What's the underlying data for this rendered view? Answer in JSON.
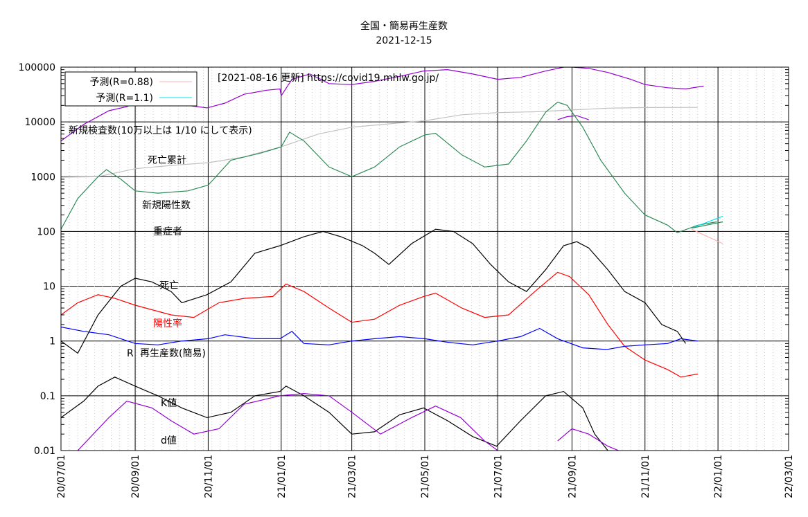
{
  "chart_data": {
    "type": "line",
    "title": "全国・簡易再生産数",
    "subtitle": "2021-12-15",
    "yscale": "log",
    "ylim": [
      0.01,
      100000
    ],
    "y_ticks": [
      "100000",
      "10000",
      "1000",
      "100",
      "10",
      "1",
      "0.1",
      "0.01"
    ],
    "xlim": [
      "2020-07-01",
      "2022-03-01"
    ],
    "x_ticks": [
      "20/07/01",
      "20/09/01",
      "20/11/01",
      "21/01/01",
      "21/03/01",
      "21/05/01",
      "21/07/01",
      "21/09/01",
      "21/11/01",
      "22/01/01",
      "22/03/01"
    ],
    "grid": "on",
    "legend": {
      "placement": "top-left",
      "entries": [
        {
          "label": "予測(R=0.88)",
          "color": "#ffb0b0"
        },
        {
          "label": "予測(R=1.1)",
          "color": "#00e5ee"
        }
      ]
    },
    "annotations": {
      "source": "[2021-08-16 更新] https://covid19.mhlw.go.jp/",
      "tests_note": "新規検査数(10万以上は 1/10 にして表示)",
      "deaths_cum": "死亡累計",
      "new_positive": "新規陽性数",
      "severe": "重症者",
      "death": "死亡",
      "positivity": "陽性率",
      "r_label": "R",
      "reproduction": "再生産数(簡易)",
      "k_value": "K値",
      "d_value": "d値"
    },
    "series": [
      {
        "key": "tests",
        "color": "#9400d3",
        "points": [
          [
            "2020-07-01",
            4500
          ],
          [
            "2020-07-20",
            9000
          ],
          [
            "2020-08-10",
            16000
          ],
          [
            "2020-08-25",
            19000
          ],
          [
            "2020-09-05",
            24000
          ],
          [
            "2020-09-15",
            22000
          ],
          [
            "2020-10-01",
            20000
          ],
          [
            "2020-10-10",
            32000
          ],
          [
            "2020-10-15",
            20000
          ],
          [
            "2020-10-31",
            18000
          ],
          [
            "2020-11-15",
            22000
          ],
          [
            "2020-12-01",
            32000
          ],
          [
            "2020-12-20",
            38000
          ],
          [
            "2020-12-31",
            40000
          ],
          [
            "2021-01-01",
            30000
          ],
          [
            "2021-01-10",
            60000
          ],
          [
            "2021-01-25",
            75000
          ],
          [
            "2021-02-10",
            50000
          ],
          [
            "2021-03-01",
            48000
          ],
          [
            "2021-03-20",
            55000
          ],
          [
            "2021-04-10",
            68000
          ],
          [
            "2021-04-30",
            85000
          ],
          [
            "2021-05-20",
            90000
          ],
          [
            "2021-06-10",
            75000
          ],
          [
            "2021-07-01",
            60000
          ],
          [
            "2021-07-20",
            65000
          ],
          [
            "2021-08-10",
            85000
          ],
          [
            "2021-08-25",
            100000
          ],
          [
            "2021-09-01",
            100000
          ],
          [
            "2021-09-15",
            95000
          ],
          [
            "2021-10-01",
            80000
          ],
          [
            "2021-10-20",
            60000
          ],
          [
            "2021-11-01",
            48000
          ],
          [
            "2021-11-20",
            42000
          ],
          [
            "2021-12-05",
            40000
          ],
          [
            "2021-12-20",
            45000
          ]
        ]
      },
      {
        "key": "tests_scaled",
        "color": "#9400d3",
        "points": [
          [
            "2021-08-20",
            11000
          ],
          [
            "2021-08-28",
            12500
          ],
          [
            "2021-09-05",
            13000
          ],
          [
            "2021-09-15",
            11000
          ]
        ]
      },
      {
        "key": "deaths_cumulative",
        "color": "#c0c0c0",
        "points": [
          [
            "2020-07-01",
            980
          ],
          [
            "2020-08-01",
            1000
          ],
          [
            "2020-09-01",
            1400
          ],
          [
            "2020-10-01",
            1600
          ],
          [
            "2020-11-01",
            1800
          ],
          [
            "2020-12-01",
            2300
          ],
          [
            "2021-01-01",
            3500
          ],
          [
            "2021-02-01",
            6000
          ],
          [
            "2021-03-01",
            8000
          ],
          [
            "2021-04-01",
            9200
          ],
          [
            "2021-05-01",
            10500
          ],
          [
            "2021-06-01",
            13500
          ],
          [
            "2021-07-01",
            14800
          ],
          [
            "2021-08-01",
            15300
          ],
          [
            "2021-09-01",
            16500
          ],
          [
            "2021-10-01",
            17800
          ],
          [
            "2021-11-01",
            18300
          ],
          [
            "2021-12-15",
            18400
          ]
        ]
      },
      {
        "key": "new_positive",
        "color": "#2e8b57",
        "points": [
          [
            "2020-07-01",
            110
          ],
          [
            "2020-07-15",
            400
          ],
          [
            "2020-08-01",
            1000
          ],
          [
            "2020-08-08",
            1350
          ],
          [
            "2020-08-20",
            900
          ],
          [
            "2020-09-01",
            550
          ],
          [
            "2020-09-20",
            500
          ],
          [
            "2020-10-15",
            550
          ],
          [
            "2020-11-01",
            700
          ],
          [
            "2020-11-20",
            2000
          ],
          [
            "2020-12-15",
            2700
          ],
          [
            "2021-01-01",
            3500
          ],
          [
            "2021-01-08",
            6500
          ],
          [
            "2021-01-20",
            4500
          ],
          [
            "2021-02-10",
            1500
          ],
          [
            "2021-03-01",
            1000
          ],
          [
            "2021-03-20",
            1500
          ],
          [
            "2021-04-10",
            3500
          ],
          [
            "2021-05-01",
            5800
          ],
          [
            "2021-05-10",
            6200
          ],
          [
            "2021-06-01",
            2500
          ],
          [
            "2021-06-20",
            1500
          ],
          [
            "2021-07-10",
            1700
          ],
          [
            "2021-07-25",
            4500
          ],
          [
            "2021-08-10",
            15000
          ],
          [
            "2021-08-20",
            23000
          ],
          [
            "2021-08-28",
            20000
          ],
          [
            "2021-09-10",
            8000
          ],
          [
            "2021-09-25",
            2000
          ],
          [
            "2021-10-15",
            500
          ],
          [
            "2021-11-01",
            200
          ],
          [
            "2021-11-20",
            130
          ],
          [
            "2021-11-28",
            95
          ],
          [
            "2021-12-15",
            130
          ],
          [
            "2021-12-31",
            150
          ]
        ]
      },
      {
        "key": "severe",
        "color": "#000000",
        "points": [
          [
            "2020-07-01",
            1
          ],
          [
            "2020-07-15",
            0.6
          ],
          [
            "2020-08-01",
            3
          ],
          [
            "2020-08-20",
            10
          ],
          [
            "2020-09-01",
            14
          ],
          [
            "2020-09-15",
            12
          ],
          [
            "2020-10-01",
            8
          ],
          [
            "2020-10-10",
            5
          ],
          [
            "2020-10-31",
            7
          ],
          [
            "2020-11-20",
            12
          ],
          [
            "2020-12-10",
            40
          ],
          [
            "2020-12-31",
            55
          ],
          [
            "2021-01-20",
            80
          ],
          [
            "2021-02-05",
            100
          ],
          [
            "2021-02-20",
            80
          ],
          [
            "2021-03-10",
            55
          ],
          [
            "2021-03-20",
            40
          ],
          [
            "2021-04-01",
            25
          ],
          [
            "2021-04-20",
            60
          ],
          [
            "2021-05-10",
            110
          ],
          [
            "2021-05-25",
            100
          ],
          [
            "2021-06-10",
            60
          ],
          [
            "2021-06-25",
            25
          ],
          [
            "2021-07-10",
            12
          ],
          [
            "2021-07-25",
            8
          ],
          [
            "2021-08-10",
            20
          ],
          [
            "2021-08-25",
            55
          ],
          [
            "2021-09-05",
            65
          ],
          [
            "2021-09-15",
            50
          ],
          [
            "2021-10-01",
            20
          ],
          [
            "2021-10-15",
            8
          ],
          [
            "2021-11-01",
            5
          ],
          [
            "2021-11-15",
            2
          ],
          [
            "2021-11-28",
            1.5
          ],
          [
            "2021-12-05",
            0.9
          ]
        ]
      },
      {
        "key": "positivity",
        "color": "#ff0000",
        "points": [
          [
            "2020-07-01",
            3
          ],
          [
            "2020-07-15",
            5
          ],
          [
            "2020-08-01",
            7
          ],
          [
            "2020-08-15",
            6
          ],
          [
            "2020-09-01",
            4.5
          ],
          [
            "2020-10-01",
            3
          ],
          [
            "2020-10-20",
            2.7
          ],
          [
            "2020-11-10",
            5
          ],
          [
            "2020-12-01",
            6
          ],
          [
            "2020-12-25",
            6.5
          ],
          [
            "2021-01-05",
            11
          ],
          [
            "2021-01-20",
            8
          ],
          [
            "2021-02-10",
            4
          ],
          [
            "2021-03-01",
            2.2
          ],
          [
            "2021-03-20",
            2.5
          ],
          [
            "2021-04-10",
            4.5
          ],
          [
            "2021-04-30",
            6.5
          ],
          [
            "2021-05-10",
            7.5
          ],
          [
            "2021-06-01",
            4
          ],
          [
            "2021-06-20",
            2.7
          ],
          [
            "2021-07-10",
            3
          ],
          [
            "2021-08-01",
            8
          ],
          [
            "2021-08-20",
            18
          ],
          [
            "2021-08-30",
            15
          ],
          [
            "2021-09-15",
            7
          ],
          [
            "2021-10-01",
            2
          ],
          [
            "2021-10-15",
            0.8
          ],
          [
            "2021-11-01",
            0.45
          ],
          [
            "2021-11-20",
            0.3
          ],
          [
            "2021-12-01",
            0.22
          ],
          [
            "2021-12-15",
            0.25
          ]
        ]
      },
      {
        "key": "r_simple",
        "color": "#0000ff",
        "points": [
          [
            "2020-07-01",
            1.8
          ],
          [
            "2020-07-20",
            1.5
          ],
          [
            "2020-08-10",
            1.3
          ],
          [
            "2020-09-01",
            0.9
          ],
          [
            "2020-09-20",
            0.85
          ],
          [
            "2020-10-10",
            1
          ],
          [
            "2020-11-01",
            1.1
          ],
          [
            "2020-11-15",
            1.3
          ],
          [
            "2020-12-10",
            1.1
          ],
          [
            "2020-12-31",
            1.1
          ],
          [
            "2021-01-10",
            1.5
          ],
          [
            "2021-01-20",
            0.9
          ],
          [
            "2021-02-10",
            0.85
          ],
          [
            "2021-03-01",
            1
          ],
          [
            "2021-03-20",
            1.1
          ],
          [
            "2021-04-10",
            1.2
          ],
          [
            "2021-05-01",
            1.1
          ],
          [
            "2021-05-20",
            0.95
          ],
          [
            "2021-06-10",
            0.85
          ],
          [
            "2021-07-01",
            1
          ],
          [
            "2021-07-20",
            1.2
          ],
          [
            "2021-08-05",
            1.7
          ],
          [
            "2021-08-20",
            1.1
          ],
          [
            "2021-09-10",
            0.75
          ],
          [
            "2021-09-30",
            0.7
          ],
          [
            "2021-10-15",
            0.8
          ],
          [
            "2021-11-01",
            0.85
          ],
          [
            "2021-11-20",
            0.9
          ],
          [
            "2021-12-01",
            1.1
          ],
          [
            "2021-12-15",
            1
          ]
        ]
      },
      {
        "key": "k_value",
        "color": "#000000",
        "points": [
          [
            "2020-07-01",
            0.04
          ],
          [
            "2020-07-20",
            0.08
          ],
          [
            "2020-08-01",
            0.15
          ],
          [
            "2020-08-15",
            0.22
          ],
          [
            "2020-09-01",
            0.15
          ],
          [
            "2020-09-20",
            0.1
          ],
          [
            "2020-10-10",
            0.06
          ],
          [
            "2020-10-31",
            0.04
          ],
          [
            "2020-11-20",
            0.05
          ],
          [
            "2020-12-10",
            0.1
          ],
          [
            "2020-12-31",
            0.12
          ],
          [
            "2021-01-05",
            0.15
          ],
          [
            "2021-01-20",
            0.1
          ],
          [
            "2021-02-10",
            0.05
          ],
          [
            "2021-03-01",
            0.02
          ],
          [
            "2021-03-20",
            0.022
          ],
          [
            "2021-04-10",
            0.045
          ],
          [
            "2021-04-30",
            0.06
          ],
          [
            "2021-05-20",
            0.035
          ],
          [
            "2021-06-10",
            0.018
          ],
          [
            "2021-06-30",
            0.012
          ],
          [
            "2021-07-20",
            0.035
          ],
          [
            "2021-08-10",
            0.1
          ],
          [
            "2021-08-25",
            0.12
          ],
          [
            "2021-09-10",
            0.06
          ],
          [
            "2021-09-20",
            0.02
          ],
          [
            "2021-10-01",
            0.01
          ]
        ]
      },
      {
        "key": "d_value",
        "color": "#9400d3",
        "points": [
          [
            "2020-07-15",
            0.01
          ],
          [
            "2020-08-10",
            0.04
          ],
          [
            "2020-08-25",
            0.08
          ],
          [
            "2020-09-15",
            0.06
          ],
          [
            "2020-10-01",
            0.035
          ],
          [
            "2020-10-20",
            0.02
          ],
          [
            "2020-11-10",
            0.025
          ],
          [
            "2020-12-01",
            0.07
          ],
          [
            "2020-12-31",
            0.1
          ],
          [
            "2021-01-20",
            0.11
          ],
          [
            "2021-02-10",
            0.1
          ],
          [
            "2021-03-01",
            0.05
          ],
          [
            "2021-03-25",
            0.02
          ],
          [
            "2021-04-20",
            0.04
          ],
          [
            "2021-05-10",
            0.065
          ],
          [
            "2021-05-31",
            0.04
          ],
          [
            "2021-06-20",
            0.015
          ],
          [
            "2021-07-01",
            0.01
          ]
        ]
      },
      {
        "key": "d_value_2",
        "color": "#9400d3",
        "points": [
          [
            "2021-08-20",
            0.015
          ],
          [
            "2021-09-01",
            0.025
          ],
          [
            "2021-09-15",
            0.02
          ],
          [
            "2021-10-01",
            0.012
          ],
          [
            "2021-10-10",
            0.01
          ]
        ]
      },
      {
        "key": "forecast_r088",
        "color": "#ffb0b0",
        "points": [
          [
            "2021-12-10",
            110
          ],
          [
            "2022-01-05",
            60
          ]
        ]
      },
      {
        "key": "forecast_r11",
        "color": "#00e5ee",
        "points": [
          [
            "2021-12-10",
            115
          ],
          [
            "2022-01-05",
            190
          ]
        ]
      },
      {
        "key": "forecast_r1",
        "color": "#2e8b57",
        "points": [
          [
            "2021-12-10",
            115
          ],
          [
            "2022-01-05",
            150
          ]
        ]
      }
    ]
  }
}
